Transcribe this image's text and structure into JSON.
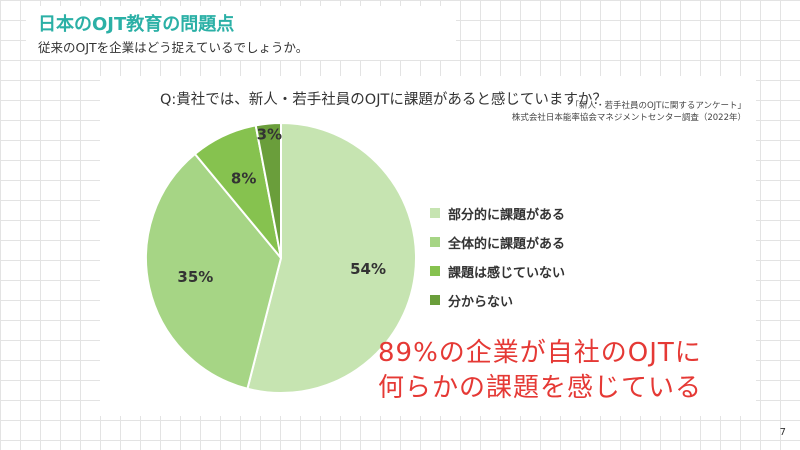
{
  "header": {
    "title": "日本のOJT教育の問題点",
    "subtitle": "従来のOJTを企業はどう捉えているでしょうか。"
  },
  "question": "Q:貴社では、新人・若手社員のOJTに課題があると感じていますか？",
  "source": {
    "line1": "「新人・若手社員のOJTに関するアンケート」",
    "line2": "株式会社日本能率協会マネジメントセンター調査（2022年）"
  },
  "chart_data": {
    "type": "pie",
    "categories": [
      "部分的に課題がある",
      "全体的に課題がある",
      "課題は感じていない",
      "分からない"
    ],
    "values": [
      54,
      35,
      8,
      3
    ],
    "labels": [
      "54%",
      "35%",
      "8%",
      "3%"
    ],
    "colors": [
      "#c6e4b1",
      "#a6d585",
      "#86c24f",
      "#6a9e3b"
    ],
    "title": "",
    "legend_position": "right"
  },
  "headline": {
    "line1": "89%の企業が自社のOJTに",
    "line2": "何らかの課題を感じている"
  },
  "page_number": "7"
}
